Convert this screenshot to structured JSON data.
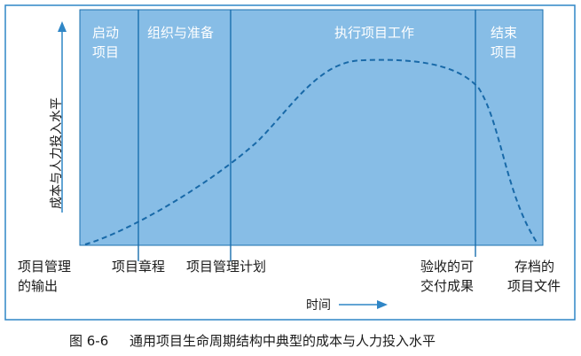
{
  "phases": {
    "initiate_line1": "启动",
    "initiate_line2": "项目",
    "organize": "组织与准备",
    "execute": "执行项目工作",
    "close_line1": "结束",
    "close_line2": "项目"
  },
  "milestones": {
    "pm_output_line1": "项目管理",
    "pm_output_line2": "的输出",
    "charter": "项目章程",
    "pm_plan": "项目管理计划",
    "deliverables_line1": "验收的可",
    "deliverables_line2": "交付成果",
    "archived_line1": "存档的",
    "archived_line2": "项目文件"
  },
  "axes": {
    "y_label": "成本与人力投入水平",
    "x_label": "时间"
  },
  "caption": {
    "number": "图 6-6",
    "title": "通用项目生命周期结构中典型的成本与人力投入水平"
  },
  "colors": {
    "plot_fill": "#87bde6",
    "line": "#1a6fae",
    "frame": "#2f86c6"
  }
}
